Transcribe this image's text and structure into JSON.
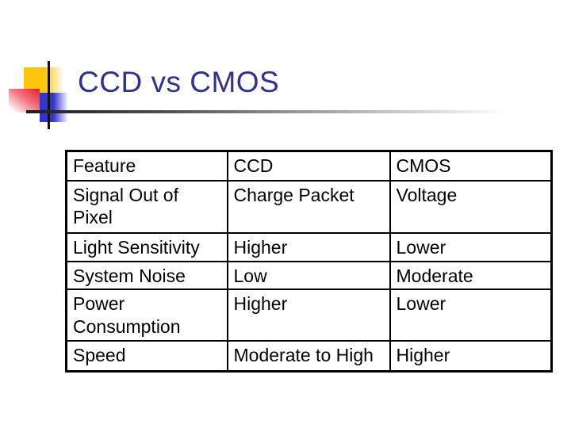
{
  "slide": {
    "title": "CCD vs CMOS",
    "colors": {
      "title_text": "#31338b",
      "accent_yellow": "#ffc40c",
      "accent_red": "#ec1c2e",
      "accent_blue": "#3234cd",
      "line_black": "#121212",
      "table_border": "#000000",
      "table_text": "#000000",
      "background": "#ffffff"
    }
  },
  "table": {
    "columns": [
      "Feature",
      "CCD",
      "CMOS"
    ],
    "rows": [
      [
        "Signal Out of Pixel",
        "Charge Packet",
        "Voltage"
      ],
      [
        "Light Sensitivity",
        "Higher",
        "Lower"
      ],
      [
        "System Noise",
        "Low",
        "Moderate"
      ],
      [
        "Power Consumption",
        "Higher",
        "Lower"
      ],
      [
        "Speed",
        "Moderate to High",
        "Higher"
      ]
    ]
  }
}
